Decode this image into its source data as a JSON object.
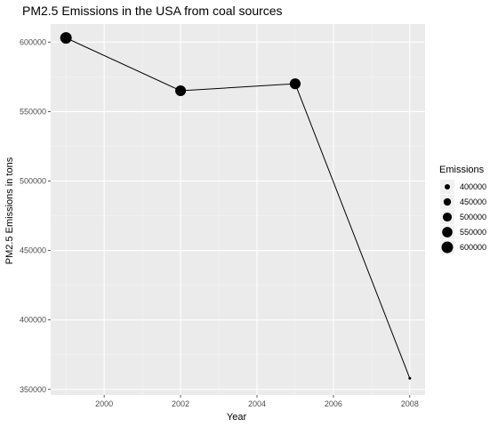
{
  "chart_data": {
    "type": "line",
    "title": "PM2.5 Emissions in the USA from coal sources",
    "xlabel": "Year",
    "ylabel": "PM2.5 Emissions in tons",
    "x": [
      1999,
      2002,
      2005,
      2008
    ],
    "series": [
      {
        "values": [
          603000,
          565000,
          570000,
          358000
        ]
      }
    ],
    "xlim": [
      1998.6,
      2008.4
    ],
    "ylim": [
      346000,
      613000
    ],
    "x_ticks": [
      2000,
      2002,
      2004,
      2006,
      2008
    ],
    "x_tick_labels": [
      "2000",
      "2002",
      "2004",
      "2006",
      "2008"
    ],
    "y_ticks": [
      350000,
      400000,
      450000,
      500000,
      550000,
      600000
    ],
    "y_tick_labels": [
      "350000",
      "400000",
      "450000",
      "500000",
      "550000",
      "600000"
    ],
    "grid": true,
    "point_size_mapping": "Emissions",
    "legend": {
      "title": "Emissions",
      "position": "right",
      "entries": [
        {
          "label": "400000",
          "value": 400000
        },
        {
          "label": "450000",
          "value": 450000
        },
        {
          "label": "500000",
          "value": 500000
        },
        {
          "label": "550000",
          "value": 550000
        },
        {
          "label": "600000",
          "value": 600000
        }
      ]
    },
    "colors": {
      "panel_background": "#ebebeb",
      "grid_major": "#ffffff",
      "grid_minor": "#f3f3f3",
      "line": "#000000",
      "points": "#000000"
    }
  }
}
